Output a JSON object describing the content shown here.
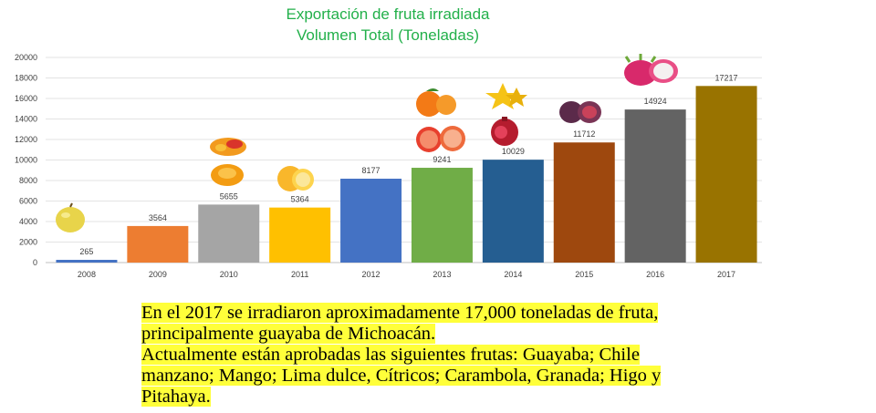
{
  "title": {
    "line1": "Exportación de fruta irradiada",
    "line2": "Volumen Total (Toneladas)"
  },
  "chart_data": {
    "type": "bar",
    "title": "Exportación de fruta irradiada Volumen Total (Toneladas)",
    "xlabel": "",
    "ylabel": "",
    "categories": [
      "2008",
      "2009",
      "2010",
      "2011",
      "2012",
      "2013",
      "2014",
      "2015",
      "2016",
      "2017"
    ],
    "values": [
      265,
      3564,
      5655,
      5364,
      8177,
      9241,
      10029,
      11712,
      14924,
      17217
    ],
    "colors": [
      "#4472c4",
      "#ed7d31",
      "#a5a5a5",
      "#ffc000",
      "#4472c4",
      "#70ad47",
      "#255e91",
      "#9e480e",
      "#636363",
      "#997300"
    ],
    "ylim": [
      0,
      20000
    ],
    "yticks": [
      0,
      2000,
      4000,
      6000,
      8000,
      10000,
      12000,
      14000,
      16000,
      18000,
      20000
    ],
    "grid": true,
    "data_labels": true,
    "legend": "none"
  },
  "fruit_icons": [
    {
      "year": "2008",
      "icons": [
        "guava-icon"
      ]
    },
    {
      "year": "2010",
      "icons": [
        "mango-icon",
        "mango-icon"
      ]
    },
    {
      "year": "2011",
      "icons": [
        "sweet-lime-icon"
      ]
    },
    {
      "year": "2013",
      "icons": [
        "tangerine-icon",
        "grapefruit-icon"
      ]
    },
    {
      "year": "2014",
      "icons": [
        "carambola-icon",
        "pomegranate-icon"
      ]
    },
    {
      "year": "2015",
      "icons": [
        "fig-icon"
      ]
    },
    {
      "year": "2016",
      "icons": [
        "pitahaya-icon"
      ]
    }
  ],
  "caption": {
    "line1": "En el 2017 se irradiaron aproximadamente 17,000 toneladas de fruta,",
    "line2": "principalmente guayaba de Michoacán.",
    "line3": "Actualmente están aprobadas las siguientes frutas:  Guayaba; Chile",
    "line4": "manzano; Mango; Lima dulce, Cítricos; Carambola, Granada; Higo y",
    "line5": "Pitahaya."
  }
}
